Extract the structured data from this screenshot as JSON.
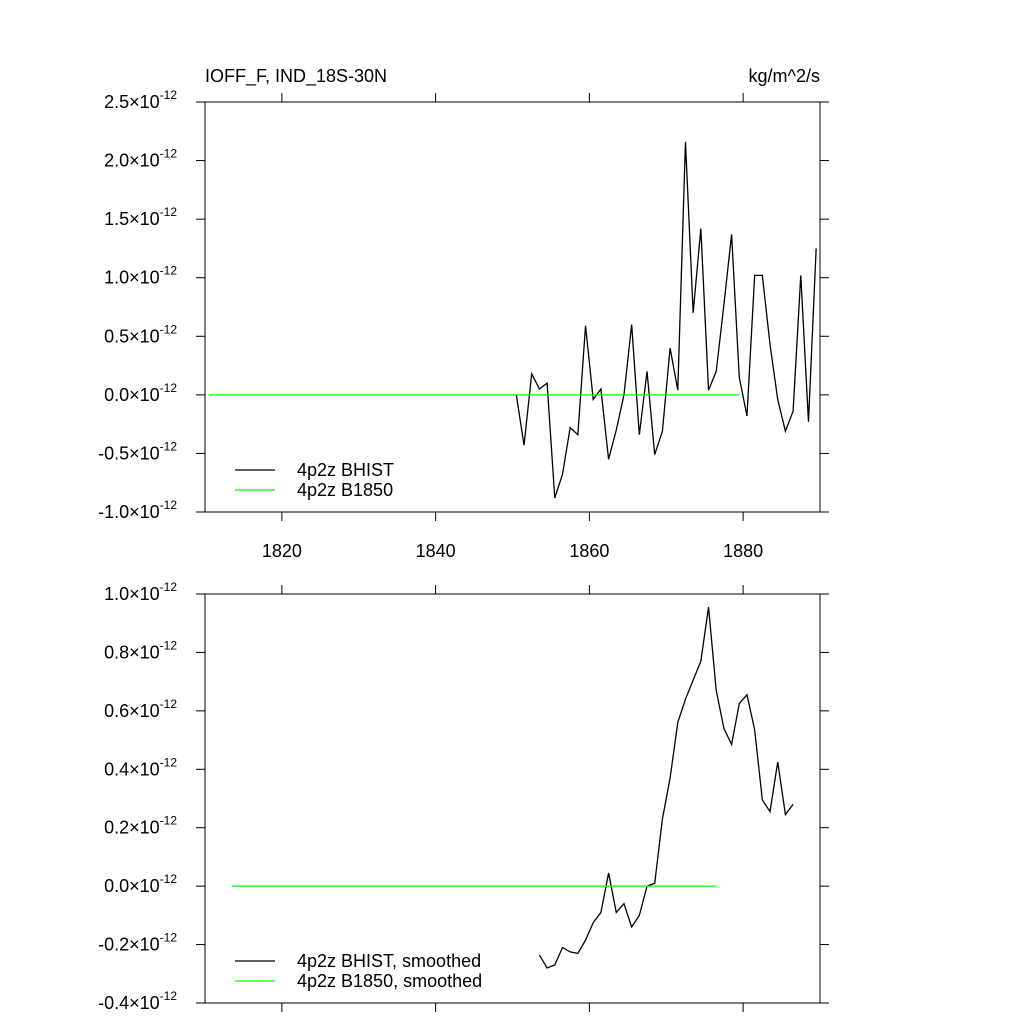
{
  "chart_data": [
    {
      "type": "line",
      "title": "IOFF_F, IND_18S-30N",
      "units": "kg/m^2/s",
      "xlim": [
        1810,
        1890
      ],
      "xticks": [
        1820,
        1840,
        1860,
        1880
      ],
      "xtick_labels": true,
      "ylim": [
        -1e-12,
        2.5e-12
      ],
      "yticks": [
        {
          "value": 2.5e-12,
          "label": "2.5×10",
          "exponent": "-12"
        },
        {
          "value": 2e-12,
          "label": "2.0×10",
          "exponent": "-12"
        },
        {
          "value": 1.5e-12,
          "label": "1.5×10",
          "exponent": "-12"
        },
        {
          "value": 1e-12,
          "label": "1.0×10",
          "exponent": "-12"
        },
        {
          "value": 5e-13,
          "label": "0.5×10",
          "exponent": "-12"
        },
        {
          "value": 0,
          "label": "0.0×10",
          "exponent": "-12"
        },
        {
          "value": -5e-13,
          "label": "-0.5×10",
          "exponent": "-12"
        },
        {
          "value": -1e-12,
          "label": "-1.0×10",
          "exponent": "-12"
        }
      ],
      "legend": "lower left",
      "series": [
        {
          "name": "4p2z BHIST",
          "color": "#000000",
          "x": [
            1850.5,
            1851.5,
            1852.5,
            1853.5,
            1854.5,
            1855.5,
            1856.5,
            1857.5,
            1858.5,
            1859.5,
            1860.5,
            1861.5,
            1862.5,
            1863.5,
            1864.5,
            1865.5,
            1866.5,
            1867.5,
            1868.5,
            1869.5,
            1870.5,
            1871.5,
            1872.5,
            1873.5,
            1874.5,
            1875.5,
            1876.5,
            1877.5,
            1878.5,
            1879.5,
            1880.5,
            1881.5,
            1882.5,
            1883.5,
            1884.5,
            1885.5,
            1886.5,
            1887.5,
            1888.5,
            1889.5
          ],
          "values": [
            0,
            -4.3e-13,
            1.8e-13,
            5e-14,
            1e-13,
            -8.8e-13,
            -6.8e-13,
            -2.8e-13,
            -3.4e-13,
            5.9e-13,
            -4e-14,
            5e-14,
            -5.5e-13,
            -3e-13,
            0,
            6e-13,
            -3.4e-13,
            2e-13,
            -5.1e-13,
            -3.1e-13,
            4e-13,
            4e-14,
            2.16e-12,
            7e-13,
            1.42e-12,
            4e-14,
            2e-13,
            7.7e-13,
            1.37e-12,
            1.5e-13,
            -1.8e-13,
            1.02e-12,
            1.02e-12,
            4.3e-13,
            -4e-14,
            -3.1e-13,
            -1.4e-13,
            1.02e-12,
            -2.3e-13,
            1.25e-12
          ]
        },
        {
          "name": "4p2z B1850",
          "color": "#00ff00",
          "x": [
            1810.5,
            1879.5
          ],
          "values": [
            0,
            0
          ]
        }
      ]
    },
    {
      "type": "line",
      "xlim": [
        1810,
        1890
      ],
      "xticks": [
        1820,
        1840,
        1860,
        1880
      ],
      "xtick_labels": false,
      "ylim": [
        -4e-13,
        1e-12
      ],
      "yticks": [
        {
          "value": 1e-12,
          "label": "1.0×10",
          "exponent": "-12"
        },
        {
          "value": 8e-13,
          "label": "0.8×10",
          "exponent": "-12"
        },
        {
          "value": 6e-13,
          "label": "0.6×10",
          "exponent": "-12"
        },
        {
          "value": 4e-13,
          "label": "0.4×10",
          "exponent": "-12"
        },
        {
          "value": 2e-13,
          "label": "0.2×10",
          "exponent": "-12"
        },
        {
          "value": 0,
          "label": "0.0×10",
          "exponent": "-12"
        },
        {
          "value": -2e-13,
          "label": "-0.2×10",
          "exponent": "-12"
        },
        {
          "value": -4e-13,
          "label": "-0.4×10",
          "exponent": "-12"
        }
      ],
      "legend": "lower left",
      "series": [
        {
          "name": "4p2z BHIST, smoothed",
          "color": "#000000",
          "x": [
            1853.5,
            1854.5,
            1855.5,
            1856.5,
            1857.5,
            1858.5,
            1859.5,
            1860.5,
            1861.5,
            1862.5,
            1863.5,
            1864.5,
            1865.5,
            1866.5,
            1867.5,
            1868.5,
            1869.5,
            1870.5,
            1871.5,
            1872.5,
            1873.5,
            1874.5,
            1875.5,
            1876.5,
            1877.5,
            1878.5,
            1879.5,
            1880.5,
            1881.5,
            1882.5,
            1883.5,
            1884.5,
            1885.5,
            1886.5
          ],
          "values": [
            -2.36e-13,
            -2.8e-13,
            -2.7e-13,
            -2.1e-13,
            -2.25e-13,
            -2.3e-13,
            -1.85e-13,
            -1.25e-13,
            -9e-14,
            4.5e-14,
            -9e-14,
            -6e-14,
            -1.4e-13,
            -1e-13,
            0,
            1e-14,
            2.3e-13,
            3.7e-13,
            5.6e-13,
            6.4e-13,
            7.05e-13,
            7.7e-13,
            9.55e-13,
            6.7e-13,
            5.4e-13,
            4.85e-13,
            6.25e-13,
            6.55e-13,
            5.35e-13,
            2.95e-13,
            2.55e-13,
            4.25e-13,
            2.45e-13,
            2.8e-13
          ]
        },
        {
          "name": "4p2z B1850, smoothed",
          "color": "#00ff00",
          "x": [
            1813.5,
            1876.5
          ],
          "values": [
            0,
            0
          ]
        }
      ]
    }
  ]
}
